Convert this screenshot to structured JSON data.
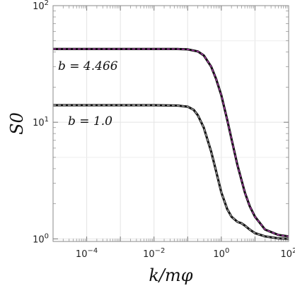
{
  "chart_data": {
    "type": "line",
    "xscale": "log",
    "yscale": "log",
    "xlim": [
      1e-05,
      100
    ],
    "ylim": [
      0.95,
      100
    ],
    "xlabel": "k/mφ",
    "ylabel": "S0",
    "grid": true,
    "xtick_labels": [
      {
        "x": 0.0001,
        "mant": "10",
        "exp": "−4"
      },
      {
        "x": 0.01,
        "mant": "10",
        "exp": "−2"
      },
      {
        "x": 1,
        "mant": "10",
        "exp": "0"
      },
      {
        "x": 100,
        "mant": "10",
        "exp": "2"
      }
    ],
    "ytick_labels": [
      {
        "y": 1,
        "mant": "10",
        "exp": "0"
      },
      {
        "y": 10,
        "mant": "10",
        "exp": "1"
      },
      {
        "y": 100,
        "mant": "10",
        "exp": "2"
      }
    ],
    "series": [
      {
        "curve_label": "b = 4.466",
        "color": "#111111",
        "overlay_color": "#b43fb4",
        "x": [
          1e-05,
          0.0001,
          0.001,
          0.01,
          0.05,
          0.1,
          0.2,
          0.3,
          0.5,
          0.7,
          1.0,
          1.5,
          2,
          3,
          5,
          7,
          10,
          20,
          50,
          100
        ],
        "y": [
          42.5,
          42.5,
          42.5,
          42.5,
          42.5,
          42.2,
          40.5,
          37.5,
          30,
          23.5,
          17,
          10.5,
          7.2,
          4.3,
          2.5,
          1.9,
          1.55,
          1.2,
          1.08,
          1.05
        ]
      },
      {
        "curve_label": "b = 1.0",
        "color": "#111111",
        "overlay_color": "#aaaaaa",
        "x": [
          1e-05,
          0.0001,
          0.001,
          0.01,
          0.05,
          0.1,
          0.15,
          0.2,
          0.3,
          0.5,
          0.7,
          1.0,
          1.5,
          2,
          3,
          4,
          5,
          7,
          10,
          20,
          50,
          100
        ],
        "y": [
          14,
          14,
          14,
          14,
          13.9,
          13.6,
          12.8,
          11.5,
          9,
          5.6,
          3.8,
          2.5,
          1.8,
          1.55,
          1.4,
          1.36,
          1.3,
          1.2,
          1.12,
          1.05,
          1.01,
          1.0
        ]
      }
    ]
  }
}
